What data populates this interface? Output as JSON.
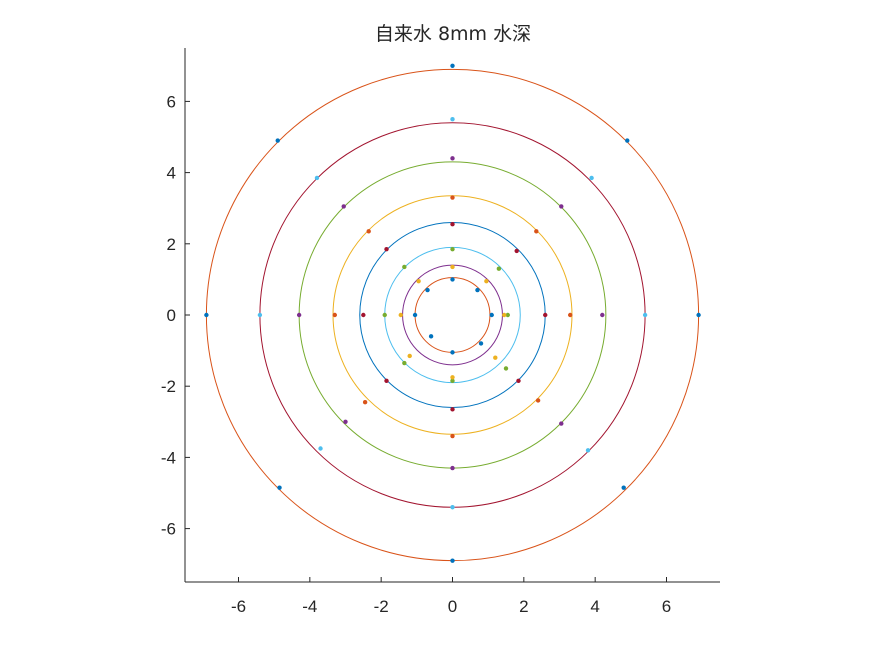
{
  "chart_data": {
    "type": "scatter",
    "title": "自来水 8mm 水深",
    "xlabel": "",
    "ylabel": "",
    "xlim": [
      -7.5,
      7.5
    ],
    "ylim": [
      -7.5,
      7.5
    ],
    "xticks": [
      -6,
      -4,
      -2,
      0,
      2,
      4,
      6
    ],
    "yticks": [
      -6,
      -4,
      -2,
      0,
      2,
      4,
      6
    ],
    "xtick_labels": [
      "-6",
      "-4",
      "-2",
      "0",
      "2",
      "4",
      "6"
    ],
    "ytick_labels": [
      "-6",
      "-4",
      "-2",
      "0",
      "2",
      "4",
      "6"
    ],
    "grid": false,
    "axes_box": "left-and-bottom",
    "circles": [
      {
        "radius": 6.9,
        "color": "#D95319",
        "point_color": "#0072BD"
      },
      {
        "radius": 5.4,
        "color": "#A2142F",
        "point_color": "#4DBEEE"
      },
      {
        "radius": 4.3,
        "color": "#77AC30",
        "point_color": "#7E2F8E"
      },
      {
        "radius": 3.35,
        "color": "#EDB120",
        "point_color": "#D95319"
      },
      {
        "radius": 2.6,
        "color": "#0072BD",
        "point_color": "#A2142F"
      },
      {
        "radius": 1.9,
        "color": "#4DBEEE",
        "point_color": "#77AC30"
      },
      {
        "radius": 1.4,
        "color": "#7E2F8E",
        "point_color": "#EDB120"
      },
      {
        "radius": 1.05,
        "color": "#D95319",
        "point_color": "#0072BD"
      }
    ],
    "points": [
      {
        "x": 0,
        "y": 7.0,
        "color": "#0072BD"
      },
      {
        "x": 0,
        "y": -6.9,
        "color": "#0072BD"
      },
      {
        "x": 6.9,
        "y": 0,
        "color": "#0072BD"
      },
      {
        "x": -6.9,
        "y": 0,
        "color": "#0072BD"
      },
      {
        "x": 4.9,
        "y": 4.9,
        "color": "#0072BD"
      },
      {
        "x": -4.9,
        "y": 4.9,
        "color": "#0072BD"
      },
      {
        "x": 4.8,
        "y": -4.85,
        "color": "#0072BD"
      },
      {
        "x": -4.85,
        "y": -4.85,
        "color": "#0072BD"
      },
      {
        "x": 0,
        "y": 5.5,
        "color": "#4DBEEE"
      },
      {
        "x": 0,
        "y": -5.4,
        "color": "#4DBEEE"
      },
      {
        "x": 5.4,
        "y": 0,
        "color": "#4DBEEE"
      },
      {
        "x": -5.4,
        "y": 0,
        "color": "#4DBEEE"
      },
      {
        "x": 3.9,
        "y": 3.85,
        "color": "#4DBEEE"
      },
      {
        "x": -3.8,
        "y": 3.85,
        "color": "#4DBEEE"
      },
      {
        "x": 3.8,
        "y": -3.8,
        "color": "#4DBEEE"
      },
      {
        "x": -3.7,
        "y": -3.75,
        "color": "#4DBEEE"
      },
      {
        "x": 0,
        "y": 4.4,
        "color": "#7E2F8E"
      },
      {
        "x": 0,
        "y": -4.3,
        "color": "#7E2F8E"
      },
      {
        "x": 4.2,
        "y": 0,
        "color": "#7E2F8E"
      },
      {
        "x": -4.3,
        "y": 0,
        "color": "#7E2F8E"
      },
      {
        "x": 3.05,
        "y": 3.05,
        "color": "#7E2F8E"
      },
      {
        "x": -3.05,
        "y": 3.05,
        "color": "#7E2F8E"
      },
      {
        "x": 3.05,
        "y": -3.05,
        "color": "#7E2F8E"
      },
      {
        "x": -3.0,
        "y": -3.0,
        "color": "#7E2F8E"
      },
      {
        "x": 0,
        "y": 3.3,
        "color": "#D95319"
      },
      {
        "x": 0,
        "y": -3.4,
        "color": "#D95319"
      },
      {
        "x": 3.3,
        "y": 0,
        "color": "#D95319"
      },
      {
        "x": -3.3,
        "y": 0,
        "color": "#D95319"
      },
      {
        "x": 2.35,
        "y": 2.35,
        "color": "#D95319"
      },
      {
        "x": -2.35,
        "y": 2.35,
        "color": "#D95319"
      },
      {
        "x": 2.4,
        "y": -2.4,
        "color": "#D95319"
      },
      {
        "x": -2.45,
        "y": -2.45,
        "color": "#D95319"
      },
      {
        "x": 0,
        "y": 2.55,
        "color": "#A2142F"
      },
      {
        "x": 0,
        "y": -2.65,
        "color": "#A2142F"
      },
      {
        "x": 2.6,
        "y": 0,
        "color": "#A2142F"
      },
      {
        "x": -2.5,
        "y": 0,
        "color": "#A2142F"
      },
      {
        "x": 1.8,
        "y": 1.8,
        "color": "#A2142F"
      },
      {
        "x": -1.85,
        "y": 1.85,
        "color": "#A2142F"
      },
      {
        "x": 1.85,
        "y": -1.85,
        "color": "#A2142F"
      },
      {
        "x": -1.85,
        "y": -1.85,
        "color": "#A2142F"
      },
      {
        "x": 0,
        "y": 1.85,
        "color": "#77AC30"
      },
      {
        "x": 0,
        "y": -1.85,
        "color": "#77AC30"
      },
      {
        "x": 1.55,
        "y": 0,
        "color": "#77AC30"
      },
      {
        "x": -1.9,
        "y": 0,
        "color": "#77AC30"
      },
      {
        "x": 1.3,
        "y": 1.3,
        "color": "#77AC30"
      },
      {
        "x": -1.35,
        "y": 1.35,
        "color": "#77AC30"
      },
      {
        "x": 1.5,
        "y": -1.5,
        "color": "#77AC30"
      },
      {
        "x": -1.35,
        "y": -1.35,
        "color": "#77AC30"
      },
      {
        "x": 0,
        "y": 1.35,
        "color": "#EDB120"
      },
      {
        "x": 0,
        "y": -1.75,
        "color": "#EDB120"
      },
      {
        "x": 1.45,
        "y": 0,
        "color": "#EDB120"
      },
      {
        "x": -1.45,
        "y": 0,
        "color": "#EDB120"
      },
      {
        "x": 0.95,
        "y": 0.95,
        "color": "#EDB120"
      },
      {
        "x": -0.95,
        "y": 0.95,
        "color": "#EDB120"
      },
      {
        "x": 1.2,
        "y": -1.2,
        "color": "#EDB120"
      },
      {
        "x": -1.2,
        "y": -1.15,
        "color": "#EDB120"
      },
      {
        "x": 0,
        "y": 1.0,
        "color": "#0072BD"
      },
      {
        "x": 0,
        "y": -1.05,
        "color": "#0072BD"
      },
      {
        "x": 1.1,
        "y": 0,
        "color": "#0072BD"
      },
      {
        "x": -1.05,
        "y": 0,
        "color": "#0072BD"
      },
      {
        "x": 0.7,
        "y": 0.7,
        "color": "#0072BD"
      },
      {
        "x": -0.7,
        "y": 0.7,
        "color": "#0072BD"
      },
      {
        "x": 0.8,
        "y": -0.8,
        "color": "#0072BD"
      },
      {
        "x": -0.6,
        "y": -0.6,
        "color": "#0072BD"
      }
    ]
  }
}
